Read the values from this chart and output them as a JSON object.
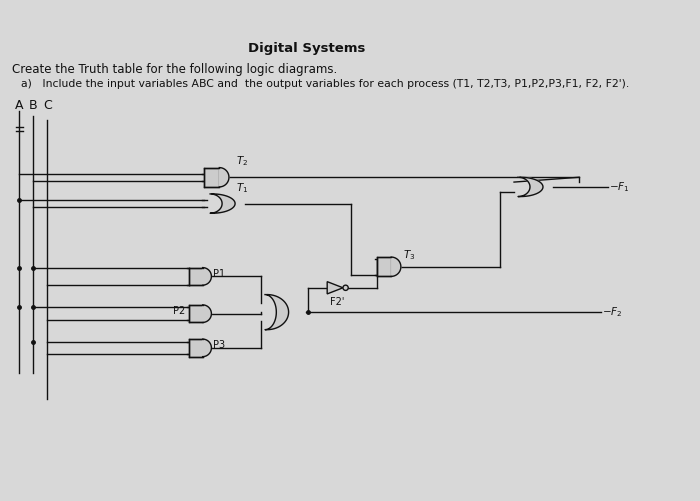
{
  "title": "Digital Systems",
  "line1": "Create the Truth table for the following logic diagrams.",
  "line2a": "a)   Include the input variables ABC and  the output variables for each process (T1, T2,T3, P1,P2,P3,F1, F2, F2').",
  "abc_labels": [
    "A",
    "B",
    "C"
  ],
  "bg_color": "#d8d8d8",
  "text_color": "#111111",
  "lc": "#111111",
  "gate_fill": "#cccccc",
  "gate_edge": "#111111",
  "lw": 1.0
}
